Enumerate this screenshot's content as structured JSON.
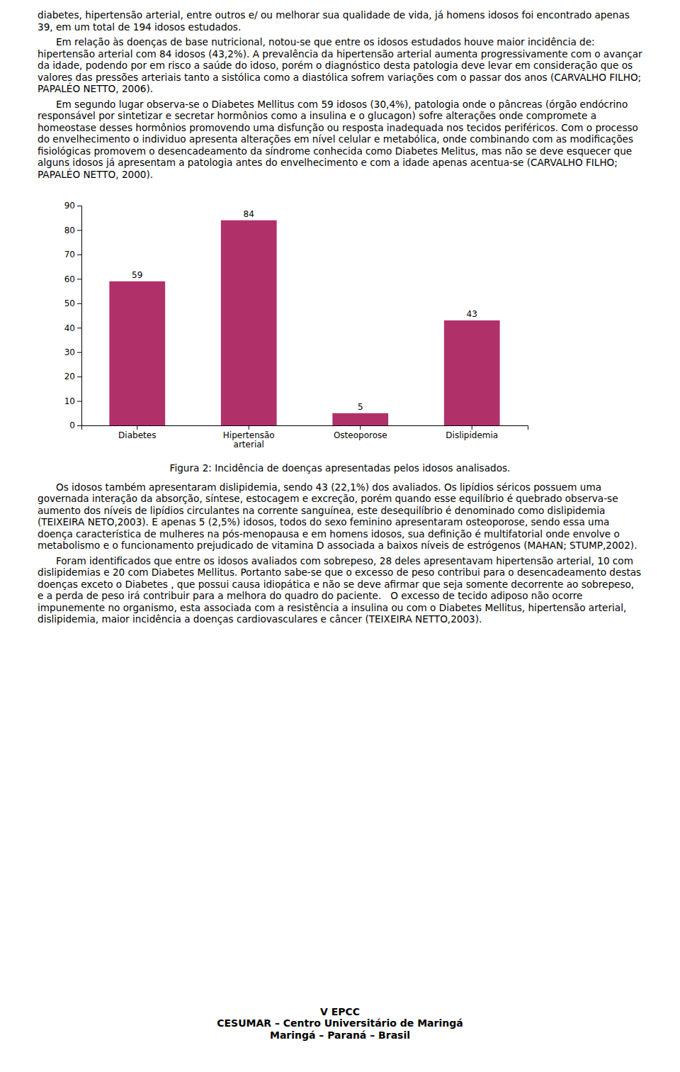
{
  "paragraphs_before": [
    "diabetes, hipertensão arterial, entre outros e/ ou melhorar sua qualidade de vida, já homens idosos foi encontrado apenas 39, em um total de 194 idosos estudados.",
    "      Em relação às doenças de base nutricional, notou-se que entre os idosos estudados houve maior incidência de: hipertensão arterial com 84 idosos (43,2%). A prevalência da hipertensão arterial aumenta progressivamente com o avançar da idade, podendo por em risco a saúde do idoso, porém o diagnóstico desta patologia deve levar em consideração que os valores das pressões arteriais tanto a sistólica como a diastólica sofrem variações com o passar dos anos (CARVALHO FILHO; PAPALÉO NETTO, 2006).",
    "      Em segundo lugar observa-se o Diabetes Mellitus com 59 idosos (30,4%), patologia onde o pâncreas (órgão endócrino responsável por sintetizar e secretar hormônios como a insulina e o glucagon) sofre alterações onde compromete a homeostase desses hormônios promovendo uma disfunção ou resposta inadequada nos tecidos periféricos. Com o processo do envelhecimento o individuo apresenta alterações em nível celular e metabólica, onde combinando com as modificações fisiológicas promovem o desencadeamento da síndrome conhecida como Diabetes Melitus, mas não se deve esquecer que alguns idosos já apresentam a patologia antes do envelhecimento e com a idade apenas acentua-se (CARVALHO FILHO; PAPALÉO NETTO, 2000)."
  ],
  "chart_data": {
    "type": "bar",
    "categories": [
      "Diabetes",
      "Hipertensão\narterial",
      "Osteoporose",
      "Dislipidemia"
    ],
    "values": [
      59,
      84,
      5,
      43
    ],
    "color": "#b0306a",
    "ylim": [
      0,
      90
    ],
    "yticks": [
      0,
      10,
      20,
      30,
      40,
      50,
      60,
      70,
      80,
      90
    ],
    "data_labels": true,
    "grid": false
  },
  "figure_caption": "Figura 2: Incidência de doenças apresentadas pelos idosos analisados.",
  "paragraphs_after": [
    "      Os idosos também apresentaram dislipidemia, sendo 43 (22,1%) dos avaliados. Os lipídios séricos possuem uma governada interação da absorção, síntese, estocagem e excreção, porém quando esse equilíbrio é quebrado observa-se aumento dos níveis de lipídios circulantes na corrente sanguínea, este desequilíbrio é denominado como dislipidemia (TEIXEIRA NETO,2003). E apenas 5 (2,5%) idosos, todos do sexo feminino apresentaram osteoporose, sendo essa uma doença característica de mulheres na pós-menopausa e em homens idosos, sua definição é multifatorial onde envolve o metabolismo e o funcionamento prejudicado de vitamina D associada a baixos níveis de estrógenos (MAHAN; STUMP,2002).",
    "      Foram identificados que entre os idosos avaliados com sobrepeso, 28 deles apresentavam hipertensão arterial, 10 com dislipidemias e 20 com Diabetes Mellitus. Portanto sabe-se que o excesso de peso contribui para o desencadeamento destas doenças exceto o Diabetes , que possui causa idiopática e não se deve afirmar que seja somente decorrente ao sobrepeso, e a perda de peso irá contribuir para a melhora do quadro do paciente.   O excesso de tecido adiposo não ocorre impunemente no organismo, esta associada com a resistência a insulina ou com o Diabetes Mellitus, hipertensão arterial, dislipidemia, maior incidência a doenças cardiovasculares e câncer (TEIXEIRA NETTO,2003)."
  ],
  "footer": [
    "V EPCC",
    "CESUMAR – Centro Universitário de Maringá",
    "Maringá – Paraná – Brasil"
  ]
}
